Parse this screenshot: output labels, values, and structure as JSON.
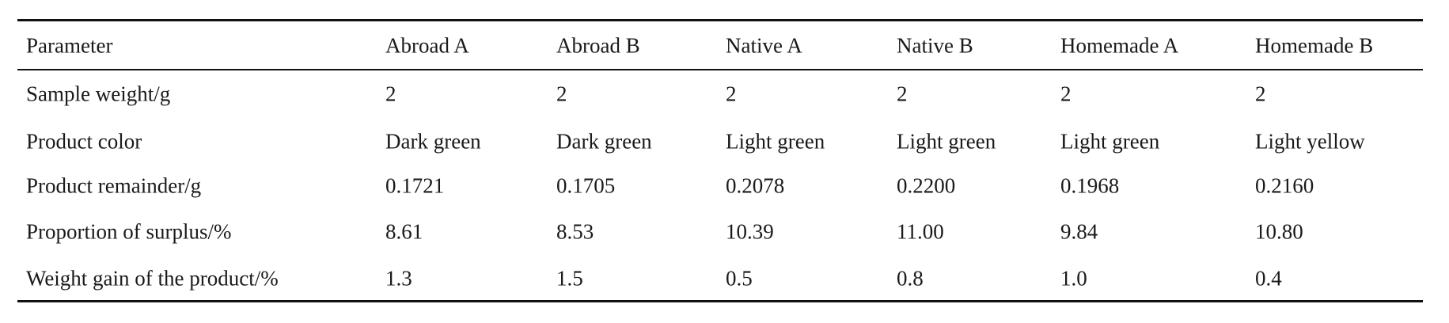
{
  "table": {
    "header": [
      "Parameter",
      "Abroad A",
      "Abroad B",
      "Native A",
      "Native B",
      "Homemade A",
      "Homemade B"
    ],
    "rows": [
      [
        "Sample weight/g",
        "2",
        "2",
        "2",
        "2",
        "2",
        "2"
      ],
      [
        "Product color",
        "Dark green",
        "Dark green",
        "Light green",
        "Light green",
        "Light green",
        "Light yellow"
      ],
      [
        "Product remainder/g",
        "0.1721",
        "0.1705",
        "0.2078",
        "0.2200",
        "0.1968",
        "0.2160"
      ],
      [
        "Proportion of surplus/%",
        "8.61",
        "8.53",
        "10.39",
        "11.00",
        "9.84",
        "10.80"
      ],
      [
        "Weight gain of the product/%",
        "1.3",
        "1.5",
        "0.5",
        "0.8",
        "1.0",
        "0.4"
      ]
    ]
  }
}
